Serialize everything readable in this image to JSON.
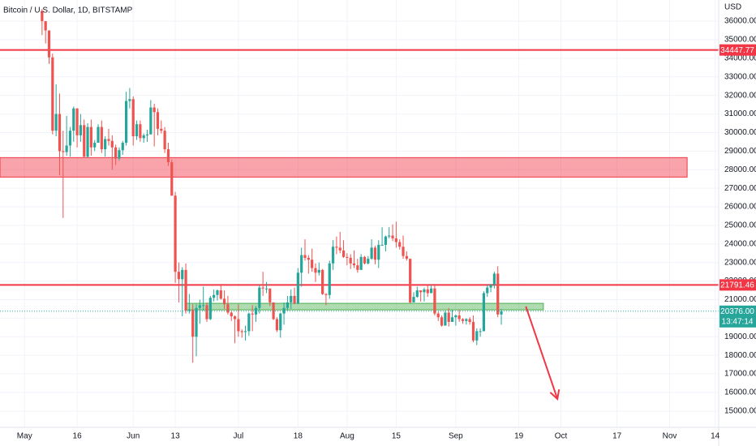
{
  "chart_data": {
    "type": "candlestick",
    "title": "Bitcoin / U.S. Dollar, 1D, BITSTAMP",
    "y_label": "USD",
    "up_color": "#26a69a",
    "down_color": "#ef5350",
    "grid": true,
    "x": [
      "05-06",
      "05-07",
      "05-08",
      "05-09",
      "05-10",
      "05-11",
      "05-12",
      "05-13",
      "05-14",
      "05-15",
      "05-16",
      "05-17",
      "05-18",
      "05-19",
      "05-20",
      "05-21",
      "05-22",
      "05-23",
      "05-24",
      "05-25",
      "05-26",
      "05-27",
      "05-28",
      "05-29",
      "05-30",
      "05-31",
      "06-01",
      "06-02",
      "06-03",
      "06-04",
      "06-05",
      "06-06",
      "06-07",
      "06-08",
      "06-09",
      "06-10",
      "06-11",
      "06-12",
      "06-13",
      "06-14",
      "06-15",
      "06-16",
      "06-17",
      "06-18",
      "06-19",
      "06-20",
      "06-21",
      "06-22",
      "06-23",
      "06-24",
      "06-25",
      "06-26",
      "06-27",
      "06-28",
      "06-29",
      "06-30",
      "07-01",
      "07-02",
      "07-03",
      "07-04",
      "07-05",
      "07-06",
      "07-07",
      "07-08",
      "07-09",
      "07-10",
      "07-11",
      "07-12",
      "07-13",
      "07-14",
      "07-15",
      "07-16",
      "07-17",
      "07-18",
      "07-19",
      "07-20",
      "07-21",
      "07-22",
      "07-23",
      "07-24",
      "07-25",
      "07-26",
      "07-27",
      "07-28",
      "07-29",
      "07-30",
      "07-31",
      "08-01",
      "08-02",
      "08-03",
      "08-04",
      "08-05",
      "08-06",
      "08-07",
      "08-08",
      "08-09",
      "08-10",
      "08-11",
      "08-12",
      "08-13",
      "08-14",
      "08-15",
      "08-16",
      "08-17",
      "08-18",
      "08-19",
      "08-20",
      "08-21",
      "08-22",
      "08-23",
      "08-24",
      "08-25",
      "08-26",
      "08-27",
      "08-28",
      "08-29",
      "08-30",
      "08-31",
      "09-01",
      "09-02",
      "09-03",
      "09-04",
      "09-05",
      "09-06",
      "09-07",
      "09-08",
      "09-09",
      "09-10",
      "09-11",
      "09-12",
      "09-13",
      "09-14"
    ],
    "open": [
      36550,
      36000,
      35500,
      34050,
      30100,
      31000,
      29000,
      28950,
      29300,
      30100,
      31300,
      29850,
      30400,
      28700,
      30300,
      29200,
      29450,
      30300,
      29100,
      29650,
      29550,
      29200,
      28600,
      29050,
      29450,
      31700,
      31800,
      29800,
      30450,
      29700,
      29850,
      29900,
      31350,
      31100,
      30200,
      30100,
      29100,
      28400,
      26600,
      22500,
      22100,
      22600,
      20400,
      20450,
      19000,
      20550,
      20700,
      20700,
      19950,
      21100,
      21250,
      21500,
      21050,
      20750,
      20300,
      20100,
      19950,
      19300,
      19250,
      19300,
      20250,
      20200,
      20550,
      21650,
      21600,
      21600,
      20850,
      19950,
      19350,
      20250,
      20550,
      20850,
      21200,
      20800,
      22450,
      23400,
      23250,
      23150,
      22700,
      22450,
      22600,
      21300,
      21250,
      22950,
      23850,
      23800,
      23650,
      23300,
      23250,
      22950,
      22850,
      22600,
      23300,
      22950,
      23200,
      23800,
      23150,
      23950,
      23950,
      24400,
      24450,
      24300,
      24100,
      23850,
      23350,
      23200,
      20850,
      21150,
      21500,
      21400,
      21550,
      21350,
      21600,
      20250,
      20050,
      19600,
      20300,
      19800,
      20050,
      20150,
      19950,
      19850,
      19950,
      19800,
      18800,
      19300,
      19300,
      21350,
      21650,
      21800,
      22400,
      20200
    ],
    "high": [
      36650,
      36000,
      35500,
      34250,
      32600,
      32100,
      30100,
      30900,
      30300,
      31400,
      31300,
      31000,
      30700,
      30500,
      30700,
      29600,
      30450,
      30650,
      29800,
      30200,
      29850,
      29350,
      29200,
      29550,
      32200,
      32400,
      31950,
      30650,
      30650,
      29950,
      30150,
      31750,
      31550,
      31300,
      30650,
      30300,
      29450,
      28550,
      26800,
      23000,
      22750,
      22950,
      21300,
      20750,
      20750,
      21000,
      21700,
      20850,
      21200,
      21550,
      21550,
      21850,
      21500,
      21200,
      20400,
      20150,
      20750,
      19400,
      19600,
      20300,
      20700,
      20650,
      21800,
      22500,
      21950,
      21600,
      20850,
      20050,
      20300,
      20850,
      21200,
      21550,
      21650,
      22700,
      23800,
      24250,
      23400,
      23750,
      22950,
      23000,
      22650,
      21350,
      23100,
      24200,
      24400,
      24650,
      24200,
      23500,
      23450,
      23650,
      23200,
      23450,
      23350,
      23350,
      24250,
      23900,
      24200,
      24900,
      24450,
      24900,
      25050,
      25200,
      24250,
      24450,
      23600,
      23200,
      21400,
      21700,
      21500,
      21650,
      21800,
      21800,
      21850,
      20350,
      20150,
      20400,
      20550,
      20450,
      20200,
      20450,
      20000,
      20000,
      20050,
      20150,
      19450,
      19450,
      21450,
      21800,
      21850,
      22500,
      22800,
      20500
    ],
    "low": [
      35250,
      34800,
      33700,
      29900,
      29800,
      27700,
      25400,
      28750,
      28700,
      29500,
      29200,
      29500,
      28650,
      28650,
      28750,
      29000,
      29450,
      28900,
      28700,
      29300,
      28000,
      28250,
      28500,
      28800,
      29300,
      31300,
      29300,
      29600,
      29500,
      29450,
      29500,
      29900,
      29250,
      29850,
      29950,
      28900,
      28200,
      26600,
      21900,
      20850,
      20100,
      20250,
      20250,
      17600,
      17950,
      19700,
      20400,
      19800,
      19900,
      20900,
      20950,
      21000,
      20500,
      20200,
      19850,
      18650,
      19000,
      18950,
      18800,
      19050,
      19300,
      19800,
      20250,
      21200,
      21350,
      20650,
      19900,
      19250,
      18950,
      19650,
      20400,
      20500,
      20750,
      20750,
      21700,
      23100,
      22400,
      22500,
      21950,
      22300,
      21250,
      20700,
      21050,
      22600,
      23450,
      23500,
      23250,
      22850,
      22650,
      22700,
      22450,
      22600,
      22900,
      22900,
      23150,
      22900,
      22700,
      23900,
      23600,
      24300,
      24150,
      23800,
      23700,
      23200,
      23100,
      20800,
      20850,
      21100,
      20900,
      20900,
      21150,
      21350,
      20150,
      19850,
      19550,
      19600,
      19550,
      19800,
      19600,
      19800,
      19700,
      19650,
      19650,
      18700,
      18550,
      19000,
      19300,
      21150,
      21400,
      21600,
      20050,
      19650
    ],
    "close": [
      36000,
      35500,
      34050,
      30100,
      31000,
      29000,
      28950,
      29300,
      30100,
      31300,
      29850,
      30400,
      28700,
      30300,
      29200,
      29450,
      30300,
      29100,
      29650,
      29550,
      29200,
      28600,
      29050,
      29450,
      31700,
      31800,
      29800,
      30450,
      29700,
      29850,
      29900,
      31350,
      31100,
      30200,
      30100,
      29100,
      28400,
      26600,
      22500,
      22100,
      22600,
      20400,
      20450,
      19000,
      20550,
      20700,
      20700,
      19950,
      21100,
      21250,
      21500,
      21050,
      20750,
      20300,
      20100,
      19950,
      19300,
      19250,
      19300,
      20250,
      20200,
      20550,
      21650,
      21600,
      21600,
      20850,
      19950,
      19350,
      20250,
      20550,
      20850,
      21200,
      20800,
      22450,
      23400,
      23250,
      23150,
      22700,
      22450,
      22600,
      21300,
      21250,
      22950,
      23850,
      23800,
      23650,
      23300,
      23250,
      22950,
      22850,
      22600,
      23300,
      22950,
      23200,
      23800,
      23150,
      23950,
      23950,
      24400,
      24450,
      24300,
      24100,
      23850,
      23350,
      23200,
      20850,
      21150,
      21500,
      21400,
      21550,
      21350,
      21600,
      20250,
      20050,
      19600,
      20300,
      19800,
      20050,
      20150,
      19950,
      19850,
      19950,
      19800,
      18800,
      19300,
      19300,
      21350,
      21650,
      21800,
      22400,
      20200,
      20376
    ],
    "xlim": [
      "04-24",
      "11-15"
    ],
    "xticks": [
      {
        "value": "05-01",
        "label": "May"
      },
      {
        "value": "05-16",
        "label": "16"
      },
      {
        "value": "06-01",
        "label": "Jun"
      },
      {
        "value": "06-13",
        "label": "13"
      },
      {
        "value": "07-01",
        "label": "Jul"
      },
      {
        "value": "07-18",
        "label": "18"
      },
      {
        "value": "08-01",
        "label": "Aug"
      },
      {
        "value": "08-15",
        "label": "15"
      },
      {
        "value": "09-01",
        "label": "Sep"
      },
      {
        "value": "09-19",
        "label": "19"
      },
      {
        "value": "10-01",
        "label": "Oct"
      },
      {
        "value": "10-17",
        "label": "17"
      },
      {
        "value": "11-01",
        "label": "Nov"
      },
      {
        "value": "11-14",
        "label": "14"
      }
    ],
    "ylim": [
      14120,
      37140
    ],
    "yticks": [
      {
        "value": 15000,
        "label": "15000.00"
      },
      {
        "value": 16000,
        "label": "16000.00"
      },
      {
        "value": 17000,
        "label": "17000.00"
      },
      {
        "value": 18000,
        "label": "18000.00"
      },
      {
        "value": 19000,
        "label": "19000.00"
      },
      {
        "value": 20000,
        "label": "20000.00"
      },
      {
        "value": 21000,
        "label": "21000.00"
      },
      {
        "value": 22000,
        "label": "22000.00"
      },
      {
        "value": 23000,
        "label": "23000.00"
      },
      {
        "value": 24000,
        "label": "24000.00"
      },
      {
        "value": 25000,
        "label": "25000.00"
      },
      {
        "value": 26000,
        "label": "26000.00"
      },
      {
        "value": 27000,
        "label": "27000.00"
      },
      {
        "value": 28000,
        "label": "28000.00"
      },
      {
        "value": 29000,
        "label": "29000.00"
      },
      {
        "value": 30000,
        "label": "30000.00"
      },
      {
        "value": 31000,
        "label": "31000.00"
      },
      {
        "value": 32000,
        "label": "32000.00"
      },
      {
        "value": 33000,
        "label": "33000.00"
      },
      {
        "value": 34000,
        "label": "34000.00"
      },
      {
        "value": 35000,
        "label": "35000.00"
      },
      {
        "value": 36000,
        "label": "36000.00"
      }
    ],
    "hlines": [
      {
        "value": 34447.77,
        "color": "#f23645"
      },
      {
        "value": 21791.46,
        "color": "#f23645"
      }
    ],
    "zones": [
      {
        "top": 28650,
        "bottom": 27600,
        "start": "04-24",
        "end": "11-06",
        "color": "#f23645"
      },
      {
        "top": 20800,
        "bottom": 20450,
        "start": "06-16",
        "end": "09-26",
        "color": "#4caf50"
      }
    ],
    "arrow": {
      "from": [
        "09-21",
        20630
      ],
      "to": [
        "09-30",
        15650
      ],
      "color": "#f23645"
    },
    "last_price": {
      "value": 20376,
      "label": "20376.00"
    },
    "countdown": "13:47:14"
  }
}
